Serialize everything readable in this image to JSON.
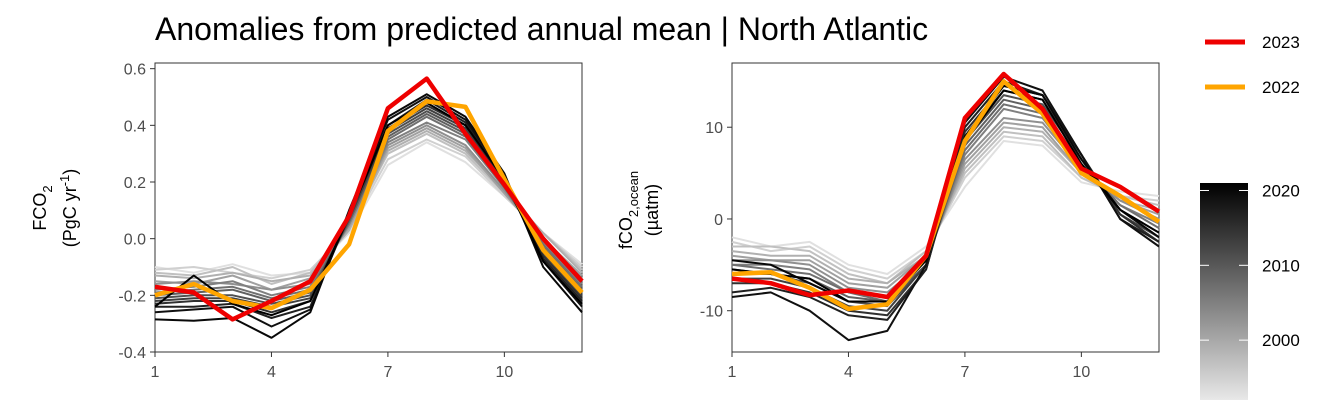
{
  "title": "Anomalies from predicted annual mean | North Atlantic",
  "colors": {
    "highlight_2023": "#ee0000",
    "highlight_2022": "#ffa500",
    "gradient_low": "#e6e6e6",
    "gradient_high": "#000000"
  },
  "legend": {
    "items": [
      {
        "label": "2023",
        "color": "#ee0000"
      },
      {
        "label": "2022",
        "color": "#ffa500"
      }
    ],
    "colorbar": {
      "ticks": [
        "2020",
        "2010",
        "2000"
      ],
      "tick_values": [
        2020,
        2010,
        2000
      ],
      "range": [
        1992,
        2021
      ]
    }
  },
  "chart_data": [
    {
      "type": "line",
      "ylabel_main": "FCO",
      "ylabel_sub": "2",
      "ylabel_line2_prefix": "(PgC yr",
      "ylabel_line2_sup": "-1",
      "ylabel_line2_suffix": ")",
      "xlim": [
        1,
        12
      ],
      "ylim": [
        -0.4,
        0.62
      ],
      "xticks": [
        1,
        4,
        7,
        10
      ],
      "xtick_labels": [
        "1",
        "4",
        "7",
        "10"
      ],
      "yticks": [
        -0.4,
        -0.2,
        0.0,
        0.2,
        0.4,
        0.6
      ],
      "ytick_labels": [
        "-0.4",
        "-0.2",
        "0.0",
        "0.2",
        "0.4",
        "0.6"
      ],
      "x": [
        1,
        2,
        3,
        4,
        5,
        6,
        7,
        8,
        9,
        10,
        11,
        12
      ],
      "series": [
        {
          "name": "2023",
          "values": [
            -0.17,
            -0.19,
            -0.285,
            -0.22,
            -0.15,
            0.08,
            0.46,
            0.565,
            0.37,
            0.19,
            0.0,
            -0.15
          ]
        },
        {
          "name": "2022",
          "values": [
            -0.2,
            -0.16,
            -0.22,
            -0.245,
            -0.18,
            -0.02,
            0.38,
            0.485,
            0.465,
            0.21,
            -0.04,
            -0.19
          ]
        }
      ],
      "background_series": [
        {
          "year": 1993,
          "values": [
            -0.1,
            -0.12,
            -0.09,
            -0.13,
            -0.12,
            0.02,
            0.26,
            0.34,
            0.27,
            0.15,
            0.02,
            -0.09
          ]
        },
        {
          "year": 1995,
          "values": [
            -0.11,
            -0.1,
            -0.12,
            -0.14,
            -0.11,
            0.03,
            0.28,
            0.35,
            0.29,
            0.15,
            0.02,
            -0.1
          ]
        },
        {
          "year": 1997,
          "values": [
            -0.12,
            -0.13,
            -0.1,
            -0.16,
            -0.12,
            0.04,
            0.3,
            0.37,
            0.3,
            0.16,
            0.02,
            -0.11
          ]
        },
        {
          "year": 1999,
          "values": [
            -0.13,
            -0.14,
            -0.12,
            -0.15,
            -0.13,
            0.03,
            0.31,
            0.38,
            0.31,
            0.17,
            0.02,
            -0.12
          ]
        },
        {
          "year": 2001,
          "values": [
            -0.15,
            -0.16,
            -0.13,
            -0.18,
            -0.14,
            0.04,
            0.32,
            0.39,
            0.32,
            0.16,
            0.0,
            -0.13
          ]
        },
        {
          "year": 2003,
          "values": [
            -0.16,
            -0.15,
            -0.16,
            -0.18,
            -0.16,
            0.05,
            0.33,
            0.4,
            0.33,
            0.17,
            0.0,
            -0.14
          ]
        },
        {
          "year": 2005,
          "values": [
            -0.18,
            -0.17,
            -0.15,
            -0.2,
            -0.17,
            0.05,
            0.34,
            0.41,
            0.35,
            0.18,
            -0.01,
            -0.16
          ]
        },
        {
          "year": 2007,
          "values": [
            -0.19,
            -0.18,
            -0.17,
            -0.21,
            -0.18,
            0.06,
            0.35,
            0.43,
            0.36,
            0.18,
            -0.02,
            -0.17
          ]
        },
        {
          "year": 2009,
          "values": [
            -0.2,
            -0.19,
            -0.18,
            -0.22,
            -0.19,
            0.06,
            0.36,
            0.44,
            0.37,
            0.19,
            -0.03,
            -0.18
          ]
        },
        {
          "year": 2011,
          "values": [
            -0.21,
            -0.2,
            -0.2,
            -0.23,
            -0.2,
            0.07,
            0.37,
            0.45,
            0.38,
            0.19,
            -0.04,
            -0.19
          ]
        },
        {
          "year": 2013,
          "values": [
            -0.22,
            -0.21,
            -0.21,
            -0.24,
            -0.21,
            0.07,
            0.38,
            0.46,
            0.39,
            0.2,
            -0.05,
            -0.2
          ]
        },
        {
          "year": 2015,
          "values": [
            -0.23,
            -0.22,
            -0.22,
            -0.26,
            -0.22,
            0.08,
            0.39,
            0.47,
            0.4,
            0.2,
            -0.06,
            -0.21
          ]
        },
        {
          "year": 2017,
          "values": [
            -0.24,
            -0.24,
            -0.23,
            -0.28,
            -0.24,
            0.08,
            0.4,
            0.49,
            0.41,
            0.21,
            -0.07,
            -0.22
          ]
        },
        {
          "year": 2019,
          "values": [
            -0.26,
            -0.25,
            -0.24,
            -0.31,
            -0.25,
            0.09,
            0.42,
            0.5,
            0.42,
            0.22,
            -0.08,
            -0.24
          ]
        },
        {
          "year": 2020,
          "values": [
            -0.285,
            -0.29,
            -0.28,
            -0.35,
            -0.26,
            0.1,
            0.43,
            0.51,
            0.43,
            0.23,
            -0.1,
            -0.26
          ]
        },
        {
          "year": 2021,
          "values": [
            -0.24,
            -0.13,
            -0.23,
            -0.27,
            -0.22,
            0.08,
            0.4,
            0.48,
            0.4,
            0.21,
            -0.08,
            -0.23
          ]
        }
      ]
    },
    {
      "type": "line",
      "ylabel_main": "fCO",
      "ylabel_sub": "2,ocean",
      "ylabel_line2": "(µatm)",
      "xlim": [
        1,
        12
      ],
      "ylim": [
        -14.5,
        17
      ],
      "xticks": [
        1,
        4,
        7,
        10
      ],
      "xtick_labels": [
        "1",
        "4",
        "7",
        "10"
      ],
      "yticks": [
        -10,
        0,
        10
      ],
      "ytick_labels": [
        "-10",
        "0",
        "10"
      ],
      "x": [
        1,
        2,
        3,
        4,
        5,
        6,
        7,
        8,
        9,
        10,
        11,
        12
      ],
      "series": [
        {
          "name": "2023",
          "values": [
            -6.5,
            -7.0,
            -8.3,
            -7.8,
            -8.5,
            -4.0,
            11.0,
            15.8,
            12.0,
            5.5,
            3.5,
            0.8
          ]
        },
        {
          "name": "2022",
          "values": [
            -6.0,
            -5.8,
            -7.5,
            -9.8,
            -9.3,
            -4.0,
            8.5,
            15.0,
            11.5,
            5.0,
            2.5,
            -0.3
          ]
        }
      ],
      "background_series": [
        {
          "year": 1993,
          "values": [
            -2.0,
            -3.0,
            -2.5,
            -5.0,
            -6.0,
            -3.0,
            3.5,
            8.5,
            8.0,
            4.0,
            3.0,
            2.5
          ]
        },
        {
          "year": 1995,
          "values": [
            -2.5,
            -3.5,
            -3.0,
            -5.5,
            -6.5,
            -3.5,
            4.5,
            9.0,
            8.5,
            4.5,
            2.5,
            2.0
          ]
        },
        {
          "year": 1997,
          "values": [
            -3.0,
            -3.0,
            -3.5,
            -6.0,
            -7.0,
            -3.5,
            5.0,
            9.5,
            9.0,
            4.5,
            2.5,
            1.5
          ]
        },
        {
          "year": 1999,
          "values": [
            -3.5,
            -4.0,
            -4.0,
            -6.5,
            -7.0,
            -4.0,
            5.5,
            10.0,
            9.5,
            5.0,
            2.0,
            1.0
          ]
        },
        {
          "year": 2001,
          "values": [
            -4.0,
            -4.5,
            -4.5,
            -7.0,
            -7.5,
            -4.0,
            6.0,
            10.5,
            10.0,
            5.0,
            2.0,
            0.5
          ]
        },
        {
          "year": 2003,
          "values": [
            -4.5,
            -4.5,
            -5.0,
            -7.5,
            -8.0,
            -4.5,
            6.5,
            11.0,
            10.5,
            5.5,
            2.0,
            0.0
          ]
        },
        {
          "year": 2005,
          "values": [
            -5.0,
            -5.0,
            -5.5,
            -8.0,
            -8.5,
            -4.5,
            7.0,
            12.0,
            11.0,
            5.5,
            1.5,
            -0.5
          ]
        },
        {
          "year": 2007,
          "values": [
            -5.0,
            -5.5,
            -6.0,
            -8.0,
            -9.0,
            -4.5,
            7.5,
            12.5,
            11.5,
            6.0,
            1.5,
            -1.0
          ]
        },
        {
          "year": 2009,
          "values": [
            -5.5,
            -6.0,
            -6.5,
            -8.5,
            -9.0,
            -5.0,
            8.0,
            13.0,
            12.0,
            6.0,
            1.0,
            -1.5
          ]
        },
        {
          "year": 2011,
          "values": [
            -6.0,
            -6.0,
            -7.0,
            -9.0,
            -9.5,
            -5.0,
            8.5,
            13.5,
            12.5,
            6.5,
            1.0,
            -2.0
          ]
        },
        {
          "year": 2013,
          "values": [
            -6.5,
            -6.5,
            -7.5,
            -9.5,
            -10.0,
            -5.0,
            9.0,
            14.0,
            13.0,
            6.5,
            0.5,
            -2.0
          ]
        },
        {
          "year": 2015,
          "values": [
            -7.0,
            -7.0,
            -8.0,
            -10.0,
            -10.5,
            -5.5,
            9.5,
            14.5,
            13.5,
            7.0,
            0.5,
            -2.5
          ]
        },
        {
          "year": 2017,
          "values": [
            -8.0,
            -7.5,
            -8.5,
            -10.5,
            -11.0,
            -5.5,
            10.0,
            15.0,
            13.5,
            7.0,
            0.0,
            -2.5
          ]
        },
        {
          "year": 2019,
          "values": [
            -8.5,
            -8.0,
            -10.0,
            -13.2,
            -12.2,
            -5.0,
            10.5,
            15.5,
            14.0,
            7.0,
            0.0,
            -3.0
          ]
        },
        {
          "year": 2020,
          "values": [
            -4.5,
            -5.0,
            -7.0,
            -9.0,
            -9.0,
            -4.5,
            9.0,
            14.5,
            13.5,
            6.5,
            1.0,
            -2.0
          ]
        },
        {
          "year": 2021,
          "values": [
            -5.5,
            -6.0,
            -6.5,
            -9.0,
            -9.0,
            -4.5,
            8.5,
            14.0,
            13.0,
            6.0,
            1.0,
            -1.5
          ]
        }
      ]
    }
  ]
}
